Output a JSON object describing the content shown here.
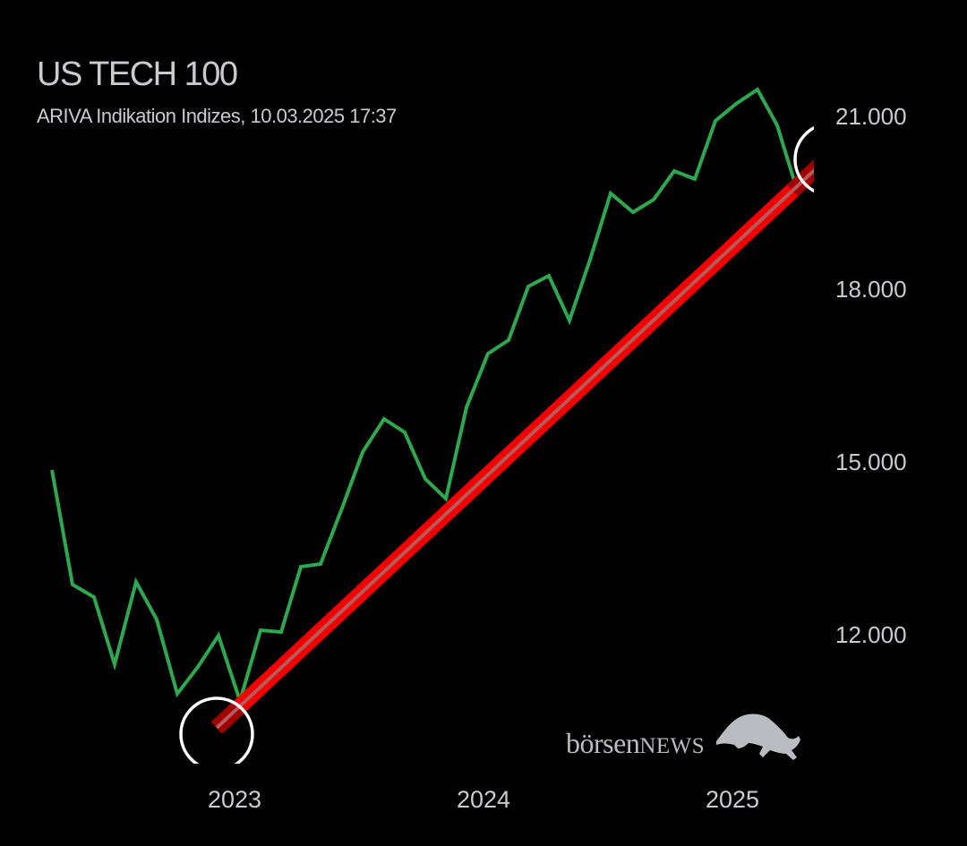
{
  "header": {
    "title": "US TECH 100",
    "subtitle": "ARIVA Indikation Indizes, 10.03.2025 17:37"
  },
  "logo": {
    "text_lower": "börsen",
    "text_upper": "NEWS",
    "icon": "bull-icon"
  },
  "colors": {
    "price_line": "#2ea84f",
    "trend_line": "#ff0000",
    "trend_core": "#b85a5a",
    "circle": "#ffffff",
    "text": "#c8cbcf",
    "background": "#000000"
  },
  "chart_data": {
    "type": "line",
    "title": "US TECH 100",
    "subtitle": "ARIVA Indikation Indizes, 10.03.2025 17:37",
    "xlabel": "",
    "ylabel": "",
    "x_ticks": [
      "2023",
      "2024",
      "2025"
    ],
    "y_ticks": [
      "12.000",
      "15.000",
      "18.000",
      "21.000"
    ],
    "ylim": [
      10500,
      22000
    ],
    "grid": false,
    "legend": null,
    "series": [
      {
        "name": "US TECH 100",
        "color": "#2ea84f",
        "values": [
          14930,
          12940,
          12720,
          11560,
          12990,
          12330,
          11040,
          11510,
          12050,
          10920,
          12150,
          12110,
          13250,
          13300,
          14310,
          15240,
          15810,
          15580,
          14780,
          14440,
          16020,
          16950,
          17180,
          18110,
          18310,
          17530,
          18590,
          19740,
          19410,
          19630,
          20130,
          19990,
          21000,
          21300,
          21540,
          20920,
          19760
        ]
      },
      {
        "name": "Trendline",
        "color": "#ff0000",
        "values_start_end": [
          10600,
          19950
        ]
      }
    ],
    "annotations": [
      {
        "type": "circle",
        "label": "trend-start",
        "x_index": 8.0
      },
      {
        "type": "circle",
        "label": "trend-end",
        "x_index": 36.5
      }
    ]
  },
  "plot": {
    "green_points": "58,525 81,653 105,667 128,742 152,650 175,692 198,775 221,745 244,710 268,783 291,704 314,706 336,633 358,630 383,565 405,505 429,468 452,483 475,535 498,557 521,455 545,395 568,380 590,320 613,308 636,358 659,290 682,216 707,237 730,223 753,191 776,200 799,135 822,116 846,100 868,140 891,215"
  }
}
